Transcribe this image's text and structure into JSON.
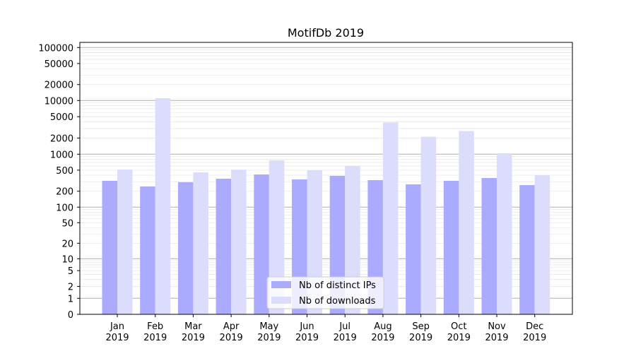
{
  "chart_data": {
    "type": "bar",
    "title": "MotifDb 2019",
    "xlabel": "",
    "ylabel": "",
    "yscale": "symlog",
    "ylim": [
      0,
      120000
    ],
    "grid": true,
    "legend_position": "bottom-center",
    "categories": [
      [
        "Jan",
        "2019"
      ],
      [
        "Feb",
        "2019"
      ],
      [
        "Mar",
        "2019"
      ],
      [
        "Apr",
        "2019"
      ],
      [
        "May",
        "2019"
      ],
      [
        "Jun",
        "2019"
      ],
      [
        "Jul",
        "2019"
      ],
      [
        "Aug",
        "2019"
      ],
      [
        "Sep",
        "2019"
      ],
      [
        "Oct",
        "2019"
      ],
      [
        "Nov",
        "2019"
      ],
      [
        "Dec",
        "2019"
      ]
    ],
    "yticks": [
      {
        "v": 0,
        "label": "0"
      },
      {
        "v": 1,
        "label": "1"
      },
      {
        "v": 2,
        "label": "2"
      },
      {
        "v": 5,
        "label": "5"
      },
      {
        "v": 10,
        "label": "10"
      },
      {
        "v": 20,
        "label": "20"
      },
      {
        "v": 50,
        "label": "50"
      },
      {
        "v": 100,
        "label": "100"
      },
      {
        "v": 200,
        "label": "200"
      },
      {
        "v": 500,
        "label": "500"
      },
      {
        "v": 1000,
        "label": "1000"
      },
      {
        "v": 2000,
        "label": "2000"
      },
      {
        "v": 5000,
        "label": "5000"
      },
      {
        "v": 10000,
        "label": "10000"
      },
      {
        "v": 20000,
        "label": "20000"
      },
      {
        "v": 50000,
        "label": "50000"
      },
      {
        "v": 100000,
        "label": "100000"
      }
    ],
    "series": [
      {
        "name": "Nb of distinct IPs",
        "color": "#aaaaff",
        "values": [
          314,
          246,
          296,
          345,
          414,
          334,
          390,
          324,
          270,
          314,
          355,
          261
        ]
      },
      {
        "name": "Nb of downloads",
        "color": "#dcdcfd",
        "values": [
          514,
          11070,
          454,
          510,
          765,
          498,
          599,
          3900,
          2110,
          2700,
          1040,
          402
        ]
      }
    ]
  }
}
